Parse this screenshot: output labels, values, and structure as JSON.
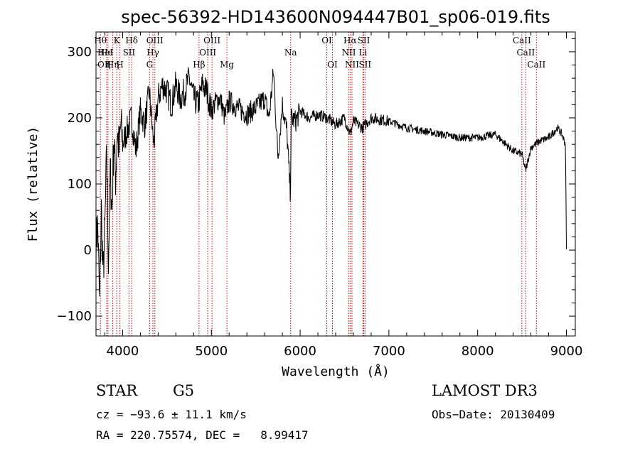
{
  "chart_data": {
    "type": "line",
    "title": "spec-56392-HD143600N094447B01_sp06-019.fits",
    "xlabel": "Wavelength (Å)",
    "ylabel": "Flux (relative)",
    "xlim": [
      3700,
      9100
    ],
    "ylim": [
      -130,
      330
    ],
    "xticks": [
      4000,
      5000,
      6000,
      7000,
      8000,
      9000
    ],
    "yticks": [
      -100,
      0,
      100,
      200,
      300
    ],
    "grid": false,
    "series": [
      {
        "name": "flux",
        "x": [
          3700,
          3720,
          3740,
          3760,
          3780,
          3800,
          3820,
          3840,
          3860,
          3880,
          3900,
          3920,
          3940,
          3960,
          3980,
          4000,
          4050,
          4100,
          4150,
          4200,
          4250,
          4300,
          4350,
          4400,
          4450,
          4500,
          4550,
          4600,
          4650,
          4700,
          4750,
          4800,
          4850,
          4900,
          4950,
          5000,
          5050,
          5100,
          5150,
          5200,
          5300,
          5400,
          5500,
          5600,
          5650,
          5700,
          5750,
          5800,
          5850,
          5890,
          5900,
          5950,
          6000,
          6100,
          6200,
          6300,
          6400,
          6500,
          6563,
          6600,
          6700,
          6800,
          7000,
          7200,
          7400,
          7600,
          7800,
          8000,
          8200,
          8400,
          8500,
          8540,
          8600,
          8700,
          8800,
          8900,
          8950,
          8990,
          9000
        ],
        "y": [
          10,
          40,
          -85,
          60,
          -40,
          30,
          150,
          -20,
          120,
          60,
          170,
          110,
          180,
          150,
          190,
          160,
          180,
          200,
          150,
          210,
          190,
          240,
          160,
          230,
          250,
          240,
          220,
          250,
          230,
          240,
          260,
          230,
          220,
          250,
          240,
          210,
          225,
          230,
          200,
          225,
          215,
          205,
          215,
          230,
          200,
          270,
          140,
          220,
          180,
          85,
          200,
          195,
          210,
          200,
          205,
          200,
          190,
          200,
          175,
          195,
          185,
          200,
          195,
          185,
          180,
          175,
          170,
          170,
          175,
          150,
          145,
          120,
          155,
          165,
          170,
          185,
          175,
          160,
          0
        ]
      }
    ],
    "line_markers": [
      {
        "wl": 3750,
        "label": "Hθ",
        "row": 0
      },
      {
        "wl": 3820,
        "label": "He",
        "row": 1
      },
      {
        "wl": 3835,
        "label": "η",
        "row": 2
      },
      {
        "wl": 3889,
        "label": "Hη",
        "row": 2
      },
      {
        "wl": 3934,
        "label": "K",
        "row": 0
      },
      {
        "wl": 3969,
        "label": "H",
        "row": 2
      },
      {
        "wl": 4072,
        "label": "SII",
        "row": 1
      },
      {
        "wl": 4102,
        "label": "Hδ",
        "row": 0
      },
      {
        "wl": 4304,
        "label": "G",
        "row": 2
      },
      {
        "wl": 4341,
        "label": "Hγ",
        "row": 1
      },
      {
        "wl": 4363,
        "label": "OIII",
        "row": 0
      },
      {
        "wl": 4861,
        "label": "Hβ",
        "row": 2
      },
      {
        "wl": 4959,
        "label": "OIII",
        "row": 1
      },
      {
        "wl": 5007,
        "label": "OIII",
        "row": 0
      },
      {
        "wl": 5175,
        "label": "Mg",
        "row": 2
      },
      {
        "wl": 5893,
        "label": "Na",
        "row": 1
      },
      {
        "wl": 6300,
        "label": "OI",
        "row": 0
      },
      {
        "wl": 6364,
        "label": "OI",
        "row": 2
      },
      {
        "wl": 6548,
        "label": "NII",
        "row": 1
      },
      {
        "wl": 6563,
        "label": "Hα",
        "row": 0
      },
      {
        "wl": 6584,
        "label": "NII",
        "row": 2
      },
      {
        "wl": 6707,
        "label": "Li",
        "row": 1
      },
      {
        "wl": 6717,
        "label": "SII",
        "row": 0
      },
      {
        "wl": 6731,
        "label": "SII",
        "row": 2
      },
      {
        "wl": 8498,
        "label": "CaII",
        "row": 0
      },
      {
        "wl": 8542,
        "label": "CaII",
        "row": 1
      },
      {
        "wl": 8662,
        "label": "CaII",
        "row": 2
      }
    ],
    "extra_labels": [
      {
        "text": "OII",
        "row": 2
      },
      {
        "text": "HeI",
        "row": 1
      }
    ]
  },
  "info": {
    "object_type": "STAR",
    "subclass": "G5",
    "survey": "LAMOST DR3",
    "redshift": "cz = −93.6 ± 11.1 km/s",
    "obs_date": "Obs−Date: 20130409",
    "coords": "RA = 220.75574, DEC =   8.99417"
  },
  "colors": {
    "spectrum": "#000000",
    "marker": "#cc0000",
    "axes": "#000000"
  }
}
